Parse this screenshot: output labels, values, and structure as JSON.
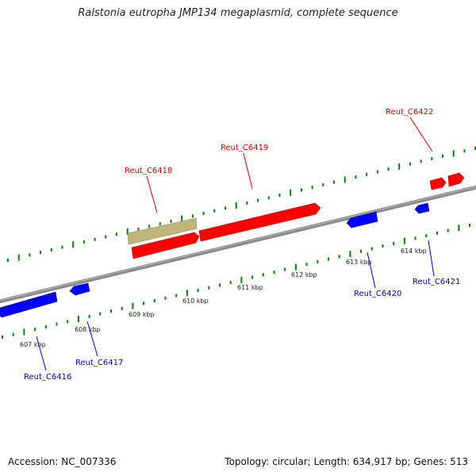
{
  "title": "Ralstonia eutropha JMP134 megaplasmid, complete sequence",
  "footer": {
    "accession": "Accession: NC_007336",
    "summary": "Topology: circular; Length: 634,917 bp; Genes: 513"
  },
  "colors": {
    "forward_gene": "#ff0000",
    "reverse_gene": "#0000ff",
    "other_feature": "#bdb57a",
    "forward_label": "#cc0000",
    "reverse_label": "#0000aa",
    "backbone": "#808080",
    "ticks": "#008000"
  },
  "scale_labels": [
    "607 kbp",
    "608 kbp",
    "609 kbp",
    "610 kbp",
    "611 kbp",
    "612 kbp",
    "613 kbp",
    "614 kbp"
  ],
  "gene_labels": {
    "forward": [
      "Reut_C6418",
      "Reut_C6419",
      "Reut_C6422"
    ],
    "reverse": [
      "Reut_C6416",
      "Reut_C6417",
      "Reut_C6420",
      "Reut_C6421"
    ]
  }
}
